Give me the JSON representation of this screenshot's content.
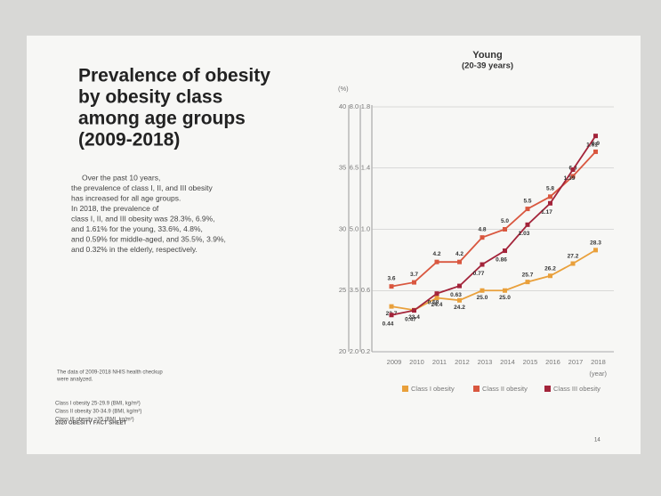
{
  "heading": [
    "Prevalence of obesity",
    "by obesity class",
    "among age groups",
    "(2009-2018)"
  ],
  "paragraph": [
    "Over the past 10 years,",
    "the prevalence of class I, II, and III obesity",
    "has increased for all age groups.",
    "In 2018, the prevalence of",
    "class I, II, and III obesity was 28.3%, 6.9%,",
    "and 1.61% for the young, 33.6%, 4.8%,",
    "and 0.59% for middle-aged, and 35.5%, 3.9%,",
    "and 0.32% in the elderly, respectively."
  ],
  "note": [
    "The data of 2009-2018 NHIS health checkup",
    "were analyzed."
  ],
  "definitions": [
    "Class I obesity  25-29.9 (BMI, kg/m²)",
    "Class II obesity  30-34.9 (BMI, kg/m²)",
    "Class III obesity  ≥35 (BMI, kg/m²)"
  ],
  "footer": "2020 OBESITY FACT SHEET",
  "page_number": "14",
  "chart_data": {
    "type": "line",
    "title": "Young",
    "subtitle": "(20-39 years)",
    "y_label": "(%)",
    "x_label": "(year)",
    "categories": [
      "2009",
      "2010",
      "2011",
      "2012",
      "2013",
      "2014",
      "2015",
      "2016",
      "2017",
      "2018"
    ],
    "ylim": [
      20,
      40
    ],
    "yticks": [
      20,
      25,
      30,
      35,
      40
    ],
    "y2lim": [
      2,
      8
    ],
    "y2ticks": [
      {
        "value": 2,
        "label": "2.0"
      },
      3.5,
      {
        "value": 5,
        "label": "5.0"
      },
      6.5,
      {
        "value": 8,
        "label": "8.0"
      }
    ],
    "y3lim": [
      0.2,
      1.8
    ],
    "y3ticks": [
      0.2,
      0.6,
      {
        "value": 1,
        "label": "1.0"
      },
      1.4,
      1.8
    ],
    "series": [
      {
        "name": "Class I obesity",
        "color": "#e9a03b",
        "axis": "y",
        "values": [
          23.7,
          23.4,
          24.4,
          24.2,
          25,
          25,
          25.7,
          26.2,
          27.2,
          28.3
        ],
        "value_labels": [
          "23.7",
          "23.4",
          "24.4",
          "24.2",
          "25.0",
          "25.0",
          "25.7",
          "26.2",
          "27.2",
          "28.3"
        ]
      },
      {
        "name": "Class II obesity",
        "color": "#d9573f",
        "axis": "y2",
        "values": [
          3.6,
          3.7,
          4.2,
          4.2,
          4.8,
          5,
          5.5,
          5.8,
          6.3,
          6.9
        ],
        "value_labels": [
          "3.6",
          "3.7",
          "4.2",
          "4.2",
          "4.8",
          "5.0",
          "5.5",
          "5.8",
          "6.3",
          "6.9"
        ]
      },
      {
        "name": "Class III obesity",
        "color": "#a3243a",
        "axis": "y3",
        "values": [
          0.44,
          0.47,
          0.58,
          0.63,
          0.77,
          0.86,
          1.03,
          1.17,
          1.39,
          1.61
        ]
      }
    ]
  }
}
